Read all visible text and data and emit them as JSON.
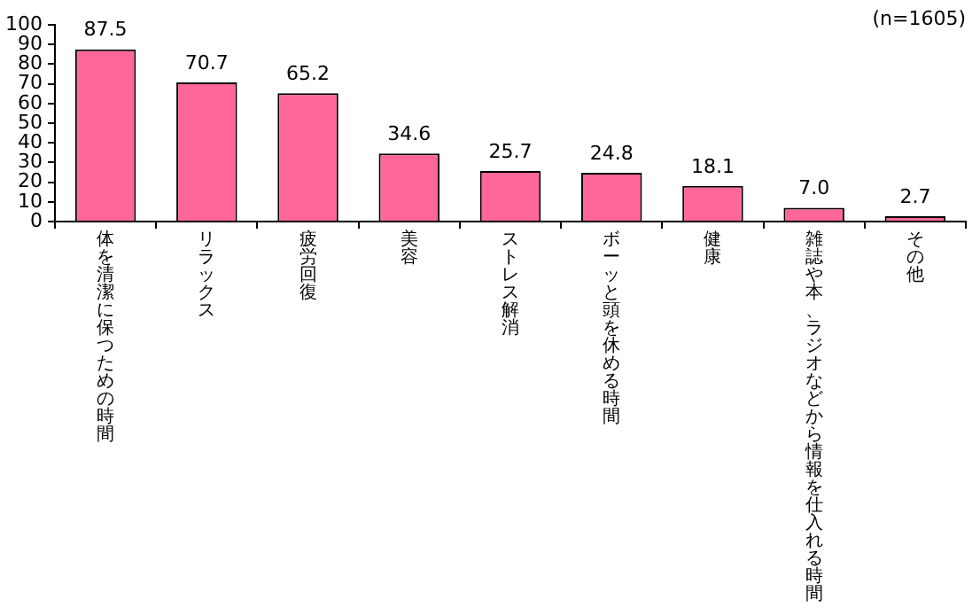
{
  "chart_data": {
    "type": "bar",
    "categories": [
      "体を清潔に保つための時間",
      "リラックス",
      "疲労回復",
      "美容",
      "ストレス解消",
      "ボーッと頭を休める時間",
      "健康",
      "雑誌や本、ラジオなどから情報を仕入れる時間",
      "その他"
    ],
    "values": [
      87.5,
      70.7,
      65.2,
      34.6,
      25.7,
      24.8,
      18.1,
      7.0,
      2.7
    ],
    "value_labels": [
      "87.5",
      "70.7",
      "65.2",
      "34.6",
      "25.7",
      "24.8",
      "18.1",
      "7.0",
      "2.7"
    ],
    "color": "#ff6699",
    "ylim": [
      0,
      100
    ],
    "yticks": [
      0,
      10,
      20,
      30,
      40,
      50,
      60,
      70,
      80,
      90,
      100
    ],
    "grid": false,
    "legend": false,
    "annotations": [
      "(n=1605)"
    ]
  }
}
